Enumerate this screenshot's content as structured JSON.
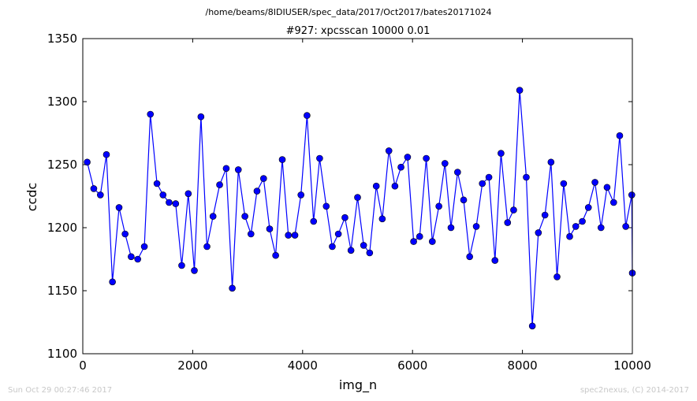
{
  "suptitle": "/home/beams/8IDIUSER/spec_data/2017/Oct2017/bates20171024",
  "footer": {
    "left": "Sun Oct 29 00:27:46 2017",
    "right": "spec2nexus, (C) 2014-2017"
  },
  "chart_data": {
    "type": "line",
    "title": "#927: xpcsscan 10000 0.01",
    "xlabel": "img_n",
    "ylabel": "ccdc",
    "xlim": [
      0,
      10000
    ],
    "ylim": [
      1100,
      1350
    ],
    "xticks": [
      0,
      2000,
      4000,
      6000,
      8000,
      10000
    ],
    "yticks": [
      1100,
      1150,
      1200,
      1250,
      1300,
      1350
    ],
    "grid": false,
    "series_color": "#0000ff",
    "marker": "circle",
    "series": [
      {
        "x": [
          80,
          200,
          320,
          430,
          540,
          660,
          770,
          880,
          1000,
          1120,
          1230,
          1350,
          1460,
          1570,
          1690,
          1800,
          1920,
          2030,
          2150,
          2260,
          2370,
          2490,
          2610,
          2720,
          2830,
          2950,
          3060,
          3170,
          3290,
          3400,
          3510,
          3630,
          3740,
          3860,
          3970,
          4080,
          4200,
          4310,
          4430,
          4540,
          4650,
          4770,
          4880,
          5000,
          5110,
          5220,
          5340,
          5450,
          5570,
          5680,
          5790,
          5910,
          6020,
          6130,
          6250,
          6360,
          6480,
          6590,
          6700,
          6820,
          6930,
          7040,
          7160,
          7270,
          7390,
          7500,
          7610,
          7730,
          7840,
          7950,
          8070,
          8180,
          8290,
          8410,
          8520,
          8630,
          8750,
          8860,
          8970,
          9090,
          9200,
          9320,
          9430,
          9540,
          9660,
          9770,
          9880,
          9990,
          10000
        ],
        "values": [
          1252,
          1231,
          1226,
          1258,
          1157,
          1216,
          1195,
          1177,
          1175,
          1185,
          1290,
          1235,
          1226,
          1220,
          1219,
          1170,
          1227,
          1166,
          1288,
          1185,
          1209,
          1234,
          1247,
          1152,
          1246,
          1209,
          1195,
          1229,
          1239,
          1199,
          1178,
          1254,
          1194,
          1194,
          1226,
          1289,
          1205,
          1255,
          1217,
          1185,
          1195,
          1208,
          1182,
          1224,
          1186,
          1180,
          1233,
          1207,
          1261,
          1233,
          1248,
          1256,
          1189,
          1193,
          1255,
          1189,
          1217,
          1251,
          1200,
          1244,
          1222,
          1177,
          1201,
          1235,
          1240,
          1174,
          1259,
          1204,
          1214,
          1309,
          1240,
          1122,
          1196,
          1210,
          1252,
          1161,
          1235,
          1193,
          1201,
          1205,
          1216,
          1236,
          1200,
          1232,
          1220,
          1273,
          1201,
          1226,
          1164
        ]
      }
    ]
  }
}
